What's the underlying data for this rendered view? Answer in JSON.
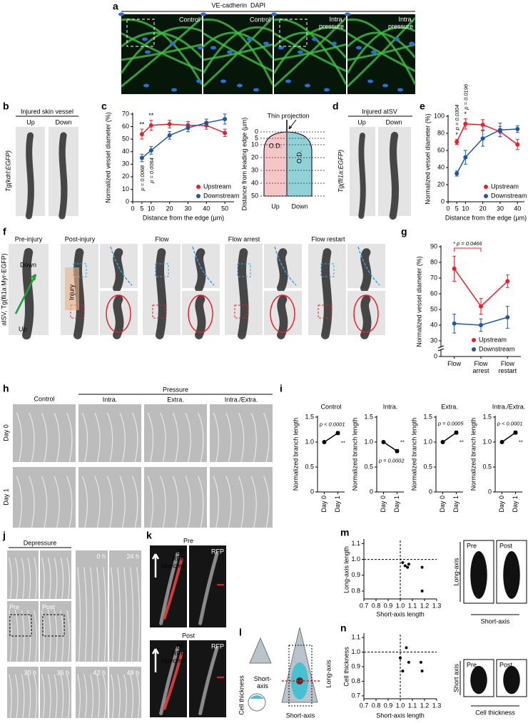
{
  "panels": {
    "a": {
      "label": "a",
      "legend": [
        "VE-cadherin",
        "DAPI"
      ],
      "images": [
        "Control",
        "Control",
        "Intra. pressure",
        "Intra. pressure"
      ]
    },
    "b": {
      "label": "b",
      "title": "Injured skin vessel",
      "columns": [
        "Up",
        "Down"
      ],
      "side_label": "Tg(kdrl:EGFP)"
    },
    "c": {
      "label": "c",
      "schematic": {
        "title": "Thin projection",
        "axis_label": "Distance from leading edge (μm)",
        "ticks": [
          0,
          5,
          10,
          20,
          30,
          40,
          50
        ],
        "measure_label": "O.D.",
        "columns": [
          "Up",
          "Down"
        ]
      }
    },
    "d": {
      "label": "d",
      "title": "Injured aISV",
      "columns": [
        "Up",
        "Down"
      ],
      "side_label": "Tg(fli1a:EGFP)"
    },
    "e": {
      "label": "e"
    },
    "f": {
      "label": "f",
      "columns": [
        "Pre-injury",
        "Post-injury",
        "Flow",
        "Flow arrest",
        "Flow restart"
      ],
      "markers": [
        "Down",
        "Up"
      ],
      "injury_label": "Injury",
      "side_label": "aISV, Tg(fli1a:Myr-EGFP)"
    },
    "g": {
      "label": "g"
    },
    "h": {
      "label": "h",
      "control": "Control",
      "group": "Pressure",
      "columns": [
        "Intra.",
        "Extra.",
        "Intra./Extra."
      ],
      "rows": [
        "Day 0",
        "Day 1"
      ]
    },
    "i": {
      "label": "i"
    },
    "j": {
      "label": "j",
      "title": "Depressure",
      "before_after": [
        "Pre",
        "Post"
      ],
      "times": [
        "0 h",
        "24 h",
        "30 h",
        "36 h",
        "42 h",
        "48 h"
      ]
    },
    "k": {
      "label": "k",
      "conditions": [
        {
          "title": "Pre",
          "channels": [
            "BF",
            "RFP",
            "Hoechst"
          ],
          "single": "RFP"
        },
        {
          "title": "Post",
          "channels": [
            "BF",
            "RFP",
            "Hoechst"
          ],
          "single": "RFP"
        }
      ]
    },
    "l": {
      "label": "l",
      "texts": [
        "Cell thickness",
        "Short-axis",
        "Short-axis",
        "Long-axis"
      ]
    },
    "m": {
      "label": "m",
      "images": [
        "Pre",
        "Post"
      ],
      "vertical": "Long-axis",
      "horizontal": "Short-axis"
    },
    "n": {
      "label": "n",
      "images": [
        "Pre",
        "Post"
      ],
      "vertical": "Short axis",
      "horizontal": "Cell thickness"
    }
  },
  "chart_data": [
    {
      "type": "line",
      "x_label": "Distance from the edge (μm)",
      "y_label": "Normalized vessel diameter (%)",
      "x": [
        5,
        10,
        20,
        30,
        40,
        50
      ],
      "xlim": [
        0,
        55
      ],
      "xticks": [
        0,
        5,
        10,
        20,
        30,
        40,
        50
      ],
      "ylim": [
        0,
        70
      ],
      "yticks": [
        0,
        10,
        20,
        30,
        40,
        50,
        60,
        70
      ],
      "legend": "lower right",
      "series": [
        {
          "name": "Upstream",
          "color": "#e8202a",
          "values": [
            54,
            61,
            62,
            61,
            61,
            55
          ],
          "errors": [
            4,
            4,
            3,
            3,
            3,
            3
          ]
        },
        {
          "name": "Downstream",
          "color": "#1f57a8",
          "values": [
            35,
            41,
            53,
            59,
            63,
            66
          ],
          "errors": [
            3,
            3,
            3,
            3,
            3,
            4
          ]
        }
      ],
      "annotations": [
        {
          "text": "**",
          "x": 5
        },
        {
          "text": "**",
          "x": 10
        },
        {
          "text": "p = 0.0068",
          "x": 5,
          "rotated": true,
          "side": "below"
        },
        {
          "text": "p = 0.0064",
          "x": 10,
          "rotated": true,
          "side": "below"
        }
      ]
    },
    {
      "type": "line",
      "x_label": "Distance from the edge (μm)",
      "y_label": "Normalized vessel diameter (%)",
      "x": [
        5,
        10,
        20,
        30,
        40
      ],
      "xlim": [
        0,
        44
      ],
      "xticks": [
        0,
        5,
        10,
        20,
        30,
        40
      ],
      "ylim": [
        0,
        100
      ],
      "yticks": [
        0,
        20,
        40,
        60,
        80,
        100
      ],
      "legend": "lower right",
      "series": [
        {
          "name": "Upstream",
          "color": "#e8202a",
          "values": [
            70,
            91,
            90,
            82,
            67
          ],
          "errors": [
            3,
            6,
            6,
            6,
            6
          ]
        },
        {
          "name": "Downstream",
          "color": "#1f57a8",
          "values": [
            33,
            52,
            74,
            84,
            85
          ],
          "errors": [
            3,
            8,
            9,
            8,
            4
          ]
        }
      ],
      "annotations": [
        {
          "text": "*",
          "x": 5
        },
        {
          "text": "p = 0.0304",
          "x": 5,
          "rotated": true,
          "side": "above"
        },
        {
          "text": "*",
          "x": 10
        },
        {
          "text": "p = 0.0196",
          "x": 10,
          "rotated": true,
          "side": "above"
        }
      ]
    },
    {
      "type": "line",
      "y_label": "Normalized vessel diameter (%)",
      "categories": [
        "Flow",
        "Flow arrest",
        "Flow restart"
      ],
      "ylim": [
        30,
        90
      ],
      "yticks": [
        30,
        40,
        50,
        60,
        70,
        80,
        90
      ],
      "axis_break_tick": 0,
      "legend": "lower right",
      "series": [
        {
          "name": "Upstream",
          "color": "#e8202a",
          "values": [
            76,
            52,
            68
          ],
          "errors": [
            8,
            5,
            4
          ]
        },
        {
          "name": "Downstream",
          "color": "#1f57a8",
          "values": [
            41,
            40,
            45
          ],
          "errors": [
            6,
            4,
            7
          ]
        }
      ],
      "annotations": [
        {
          "text": "* p = 0.0466"
        }
      ]
    },
    {
      "type": "line",
      "title": "Control",
      "y_label": "Normalized branch length",
      "categories": [
        "Day 0",
        "Day 1"
      ],
      "ylim": [
        0,
        1.5
      ],
      "yticks": [
        0,
        0.5,
        {
          "value": 1,
          "label": "1.0"
        },
        1.5
      ],
      "series": [
        {
          "color": "#000000",
          "values": [
            1.0,
            1.18
          ],
          "errors": [
            0.01,
            0.03
          ]
        }
      ],
      "annotations": [
        {
          "text": "p < 0.0001"
        },
        {
          "text": "**"
        }
      ]
    },
    {
      "type": "line",
      "title": "Intra.",
      "y_label": "Normalized branch length",
      "categories": [
        "Day 0",
        "Day 1"
      ],
      "ylim": [
        0,
        1.5
      ],
      "yticks": [
        0,
        0.5,
        {
          "value": 1,
          "label": "1.0"
        },
        1.5
      ],
      "series": [
        {
          "color": "#000000",
          "values": [
            1.0,
            0.82
          ],
          "errors": [
            0.01,
            0.03
          ]
        }
      ],
      "annotations": [
        {
          "text": "**"
        },
        {
          "text": "p = 0.0002"
        }
      ]
    },
    {
      "type": "line",
      "title": "Extra.",
      "y_label": "Normalized branch length",
      "categories": [
        "Day 0",
        "Day 1"
      ],
      "ylim": [
        0,
        1.5
      ],
      "yticks": [
        0,
        0.5,
        {
          "value": 1,
          "label": "1.0"
        },
        1.5
      ],
      "series": [
        {
          "color": "#000000",
          "values": [
            1.0,
            1.19
          ],
          "errors": [
            0.01,
            0.03
          ]
        }
      ],
      "annotations": [
        {
          "text": "p = 0.0005"
        },
        {
          "text": "**"
        }
      ]
    },
    {
      "type": "line",
      "title": "Intra./Extra.",
      "y_label": "Normalized branch length",
      "categories": [
        "Day 0",
        "Day 1"
      ],
      "ylim": [
        0,
        1.5
      ],
      "yticks": [
        0,
        0.5,
        {
          "value": 1,
          "label": "1.0"
        },
        1.5
      ],
      "series": [
        {
          "color": "#000000",
          "values": [
            1.0,
            1.19
          ],
          "errors": [
            0.01,
            0.03
          ]
        }
      ],
      "annotations": [
        {
          "text": "p < 0.0001"
        },
        {
          "text": "**"
        }
      ]
    },
    {
      "type": "scatter",
      "x_label": "Short-axis length",
      "y_label": "Long-axis length",
      "x": [
        1.02,
        1.04,
        1.06,
        1.07,
        1.18,
        1.18
      ],
      "xlim": [
        0.7,
        1.3
      ],
      "xticks": [
        0.7,
        0.8,
        0.9,
        {
          "value": 1,
          "label": "1.0"
        },
        1.1,
        1.2,
        1.3
      ],
      "ylim": [
        0.75,
        1.12
      ],
      "yticks": [
        0.8,
        0.9,
        {
          "value": 1,
          "label": "1.0"
        },
        1.1
      ],
      "reference_lines": {
        "x": 1,
        "y": 1
      },
      "series": [
        {
          "color": "#000000",
          "values": [
            0.98,
            0.96,
            0.95,
            0.97,
            0.95,
            0.8
          ]
        }
      ]
    },
    {
      "type": "scatter",
      "x_label": "Short-axis length",
      "y_label": "Cell thickness",
      "x": [
        1.0,
        1.02,
        1.05,
        1.07,
        1.17,
        1.18
      ],
      "xlim": [
        0.7,
        1.3
      ],
      "xticks": [
        0.7,
        0.8,
        0.9,
        {
          "value": 1,
          "label": "1.0"
        },
        1.1,
        1.2,
        1.3
      ],
      "ylim": [
        0.68,
        1.12
      ],
      "yticks": [
        0.7,
        0.8,
        0.9,
        {
          "value": 1,
          "label": "1.0"
        },
        1.1
      ],
      "reference_lines": {
        "x": 1,
        "y": 1
      },
      "series": [
        {
          "color": "#000000",
          "values": [
            0.96,
            0.87,
            1.03,
            0.93,
            0.93,
            0.87
          ]
        }
      ]
    }
  ]
}
